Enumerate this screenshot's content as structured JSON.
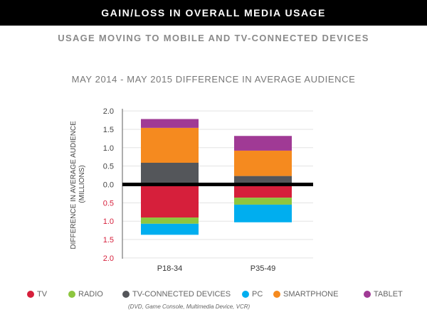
{
  "header": {
    "title": "GAIN/LOSS IN OVERALL MEDIA USAGE"
  },
  "subtitle": "USAGE MOVING TO MOBILE AND TV-CONNECTED DEVICES",
  "chart_data": {
    "type": "bar",
    "stacked": true,
    "title": "MAY 2014 - MAY 2015 DIFFERENCE IN AVERAGE AUDIENCE",
    "ylabel": "DIFFERENCE IN AVERAGE AUDIENCE (MILLIONS)",
    "ylabel_lines": [
      "DIFFERENCE IN AVERAGE AUDIENCE",
      "(MILLIONS)"
    ],
    "ylim": [
      -2.0,
      2.0
    ],
    "yticks": [
      "2.0",
      "1.5",
      "1.0",
      "0.5",
      "0.0",
      "0.5",
      "1.0",
      "1.5",
      "2.0"
    ],
    "ytick_colors": {
      "positive": "#444444",
      "negative": "#d61f3b"
    },
    "grid": true,
    "legend_position": "bottom",
    "categories": [
      "P18-34",
      "P35-49"
    ],
    "series": [
      {
        "name": "TV",
        "color": "#d61f3b",
        "values": [
          -0.9,
          -0.36
        ]
      },
      {
        "name": "RADIO",
        "color": "#8dc63f",
        "values": [
          -0.17,
          -0.19
        ]
      },
      {
        "name": "TV-CONNECTED DEVICES",
        "color": "#54565a",
        "values": [
          0.59,
          0.23
        ]
      },
      {
        "name": "PC",
        "color": "#00aeef",
        "values": [
          -0.3,
          -0.48
        ]
      },
      {
        "name": "SMARTPHONE",
        "color": "#f58a1f",
        "values": [
          0.95,
          0.69
        ]
      },
      {
        "name": "TABLET",
        "color": "#a03a95",
        "values": [
          0.24,
          0.4
        ]
      }
    ],
    "legend_note": "(DVD, Game Console, Multimedia Device, VCR)"
  }
}
